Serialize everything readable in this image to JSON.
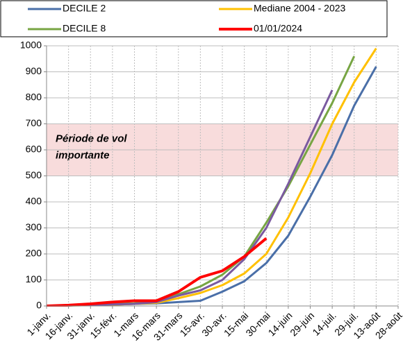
{
  "chart_data": {
    "type": "line",
    "categories": [
      "1-janv.",
      "16-janv.",
      "31-janv.",
      "15-févr.",
      "1-mars",
      "16-mars",
      "31-mars",
      "15-avr.",
      "30-avr.",
      "15-mai",
      "30-mai",
      "14-juin",
      "29-juin",
      "14-juil.",
      "29-juil.",
      "13-août",
      "28-août"
    ],
    "series": [
      {
        "name": "DECILE 2",
        "color": "#4a6fa8",
        "width": 3,
        "values": [
          0,
          2,
          3,
          5,
          8,
          10,
          15,
          20,
          55,
          95,
          165,
          270,
          420,
          580,
          770,
          920,
          null
        ]
      },
      {
        "name": "Mediane 2004 - 2023",
        "color": "#ffc000",
        "width": 3,
        "values": [
          0,
          2,
          3,
          5,
          8,
          12,
          30,
          50,
          80,
          125,
          200,
          340,
          510,
          700,
          860,
          990,
          null
        ]
      },
      {
        "name": "DECILE 8",
        "color": "#77a543",
        "width": 3,
        "values": [
          0,
          3,
          5,
          8,
          10,
          20,
          45,
          75,
          120,
          190,
          320,
          460,
          620,
          780,
          960,
          null,
          null
        ]
      },
      {
        "name": "01/01/2024",
        "color": "#ff0000",
        "width": 4,
        "values": [
          0,
          3,
          8,
          15,
          20,
          20,
          55,
          110,
          135,
          190,
          260,
          null,
          null,
          null,
          null,
          null,
          null
        ]
      },
      {
        "color": "#7a5aa0",
        "width": 3,
        "values": [
          0,
          2,
          4,
          6,
          8,
          15,
          40,
          60,
          100,
          180,
          300,
          470,
          650,
          830,
          null,
          null,
          null
        ]
      }
    ],
    "band": [
      500,
      700
    ],
    "band_color": "#f8dcdc",
    "annotation": "Période de vol\nimportante",
    "ylim": [
      0,
      1000
    ],
    "yticks": [
      0,
      100,
      200,
      300,
      400,
      500,
      600,
      700,
      800,
      900,
      1000
    ],
    "grid": true,
    "legend": "top"
  }
}
